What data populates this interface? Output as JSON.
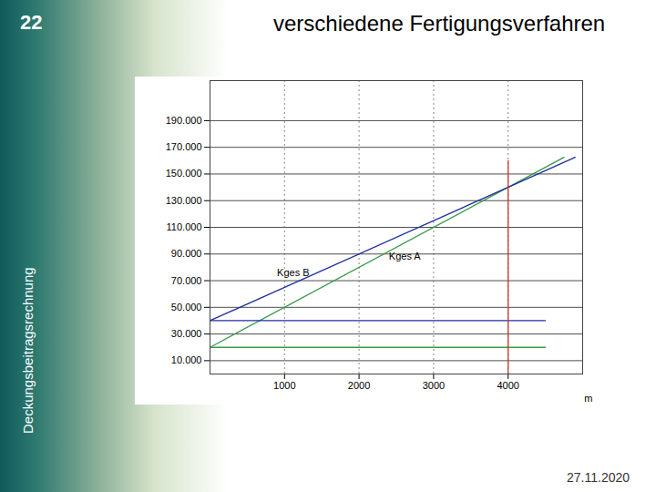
{
  "page": {
    "number": "22",
    "title": "verschiedene Fertigungsverfahren",
    "side_text": "Deckungsbeitragsrechnung",
    "date": "27.11.2020"
  },
  "chart_data": {
    "type": "line",
    "x_label": "m",
    "xlim": [
      0,
      5000
    ],
    "xticks": [
      1000,
      2000,
      3000,
      4000
    ],
    "ylim": [
      0,
      220000
    ],
    "yticks": [
      {
        "value": 10000,
        "label": "10.000"
      },
      {
        "value": 30000,
        "label": "30.000"
      },
      {
        "value": 50000,
        "label": "50.000"
      },
      {
        "value": 70000,
        "label": "70.000"
      },
      {
        "value": 90000,
        "label": "90.000"
      },
      {
        "value": 110000,
        "label": "110.000"
      },
      {
        "value": 130000,
        "label": "130.000"
      },
      {
        "value": 150000,
        "label": "150.000"
      },
      {
        "value": 170000,
        "label": "170.000"
      },
      {
        "value": 190000,
        "label": "190.000"
      }
    ],
    "grid": true,
    "series": [
      {
        "color": "#3a9a4a",
        "x": [
          0,
          4750
        ],
        "values": [
          20000,
          162500
        ]
      },
      {
        "color": "#1f2fa0",
        "x": [
          0,
          4900
        ],
        "values": [
          40000,
          162500
        ]
      },
      {
        "color": "#3a9a4a",
        "x": [
          0,
          4500
        ],
        "values": [
          20000,
          20000
        ]
      },
      {
        "color": "#1f2fa0",
        "x": [
          0,
          4500
        ],
        "values": [
          40000,
          40000
        ]
      },
      {
        "color": "#c0392b",
        "x": [
          4000,
          4000
        ],
        "values": [
          0,
          160000
        ]
      }
    ],
    "annotations": [
      {
        "text": "Kges A",
        "x": 2400,
        "y": 88000
      },
      {
        "text": "Kges B",
        "x": 900,
        "y": 76000
      }
    ]
  }
}
